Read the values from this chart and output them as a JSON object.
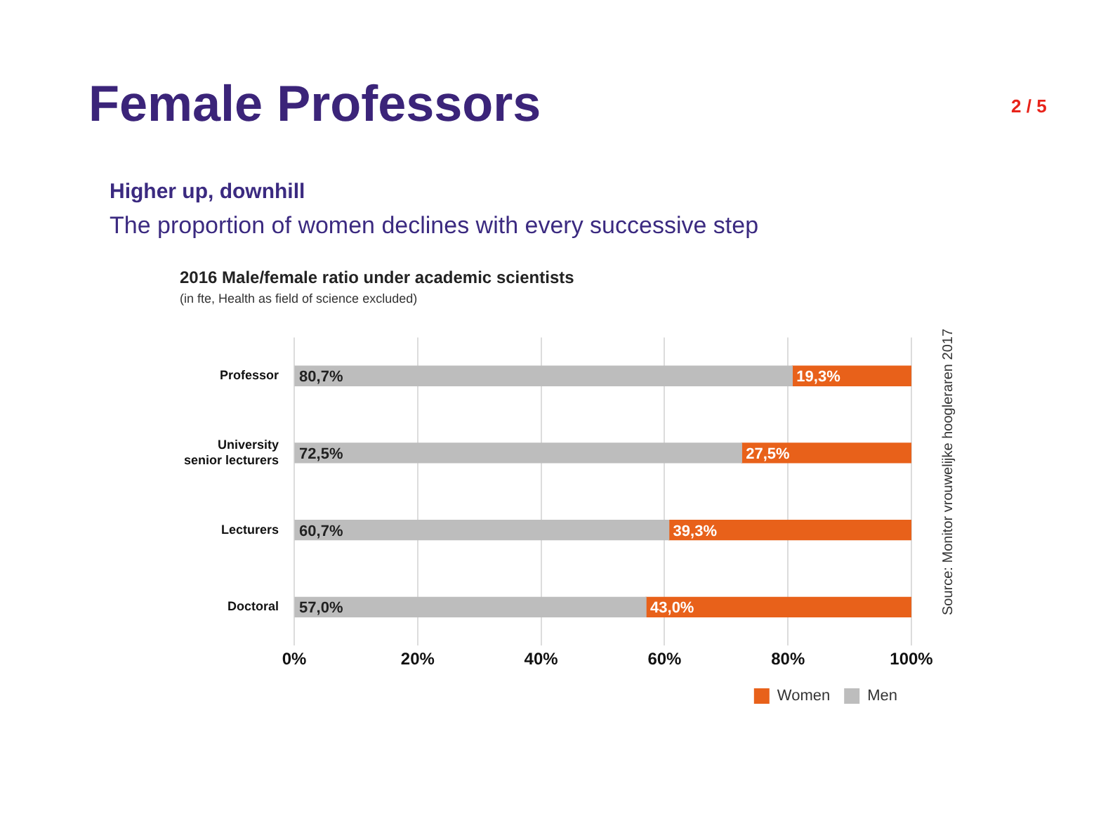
{
  "chart_data": {
    "type": "bar",
    "orientation": "horizontal",
    "stacked": true,
    "title": "2016 Male/female ratio under academic scientists",
    "subtitle": "(in fte, Health as field of science excluded)",
    "annotations": [
      "Female Professors",
      "2 / 5",
      "Higher up, downhill",
      "The proportion of women declines with every successive step",
      "Source: Monitor vrouwelijke hoogleraren 2017"
    ],
    "categories": [
      "Professor",
      "University\nsenior lecturers",
      "Lecturers",
      "Doctoral"
    ],
    "series": [
      {
        "name": "Men",
        "color": "#bdbdbd",
        "values": [
          80.7,
          72.5,
          60.7,
          57.0
        ],
        "value_labels": [
          "80,7%",
          "72,5%",
          "60,7%",
          "57,0%"
        ]
      },
      {
        "name": "Women",
        "color": "#e8611a",
        "values": [
          19.3,
          27.5,
          39.3,
          43.0
        ],
        "value_labels": [
          "19,3%",
          "27,5%",
          "39,3%",
          "43,0%"
        ]
      }
    ],
    "xlim": [
      0,
      100
    ],
    "xticks": [
      {
        "value": 0,
        "label": "0%"
      },
      {
        "value": 20,
        "label": "20%"
      },
      {
        "value": 40,
        "label": "40%"
      },
      {
        "value": 60,
        "label": "60%"
      },
      {
        "value": 80,
        "label": "80%"
      },
      {
        "value": 100,
        "label": "100%"
      }
    ],
    "grid": "x",
    "legend": "bottom right"
  }
}
